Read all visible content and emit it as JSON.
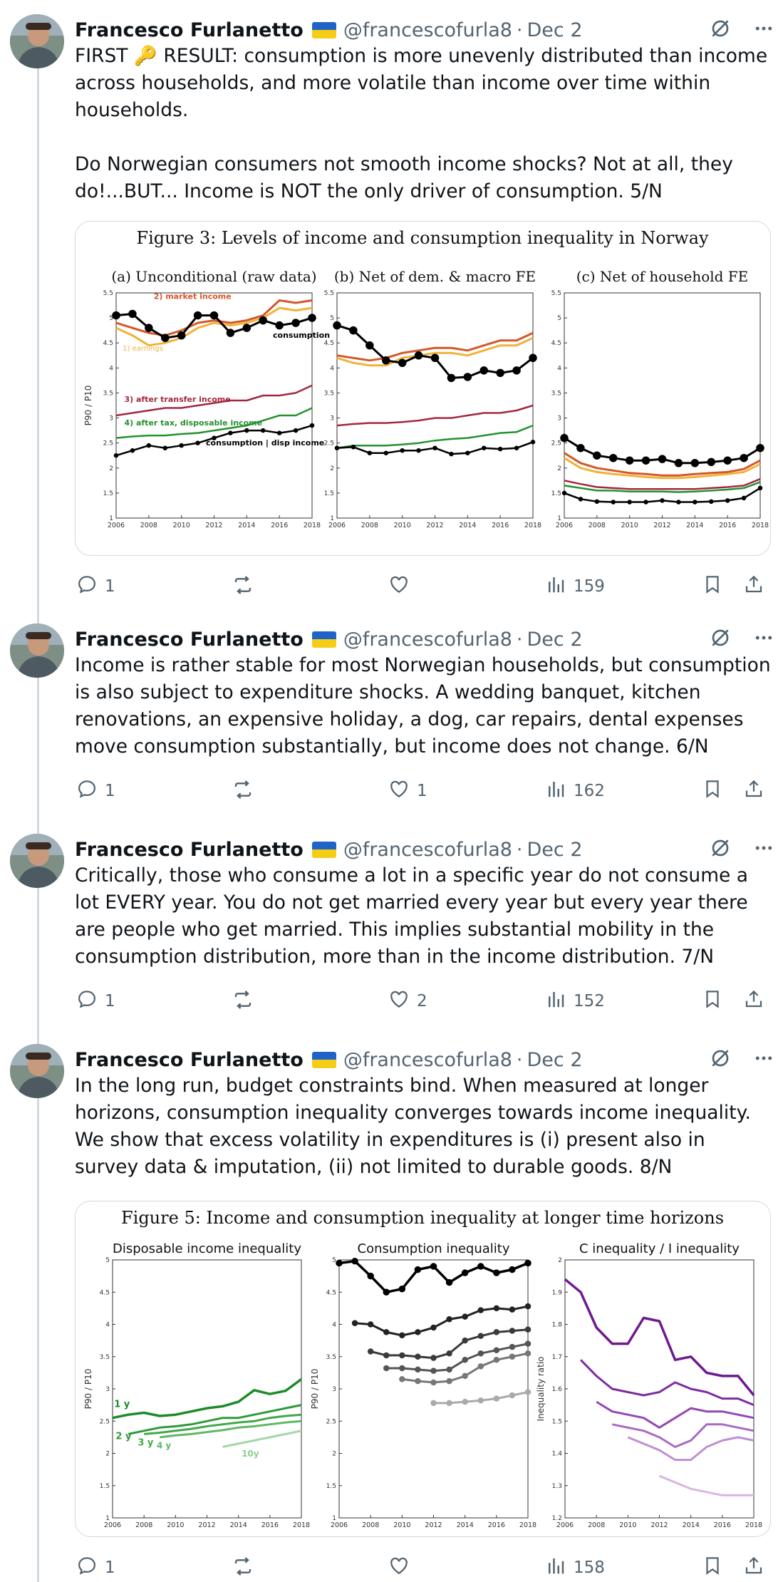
{
  "author": {
    "name": "Francesco Furlanetto",
    "handle": "@francescofurla8"
  },
  "tweets": [
    {
      "date": "Dec 2",
      "text": "FIRST 🔑 RESULT: consumption is more unevenly distributed than income across households, and more volatile than income over time within households.\n\nDo Norwegian consumers not smooth income shocks? Not at all, they do!...BUT... Income is NOT the only driver of consumption. 5/N",
      "replies": "1",
      "retweets": "",
      "likes": "",
      "views": "159"
    },
    {
      "date": "Dec 2",
      "text": "Income is rather stable for most Norwegian households, but consumption is also subject to expenditure shocks. A wedding banquet, kitchen renovations, an expensive holiday, a dog, car repairs, dental expenses move consumption substantially, but income does not change. 6/N",
      "replies": "1",
      "retweets": "",
      "likes": "1",
      "views": "162"
    },
    {
      "date": "Dec 2",
      "text": "Critically, those who consume a lot in a specific year do not consume a lot EVERY year. You do not get married every year but every year there are people who get married. This implies substantial mobility in the consumption distribution, more than in the income distribution. 7/N",
      "replies": "1",
      "retweets": "",
      "likes": "2",
      "views": "152"
    },
    {
      "date": "Dec 2",
      "text": "In the long run, budget constraints bind. When measured at longer horizons, consumption inequality converges towards income inequality.\nWe show that excess volatility in expenditures is (i) present also in survey data & imputation, (ii) not limited to durable goods. 8/N",
      "replies": "1",
      "retweets": "",
      "likes": "",
      "views": "158"
    }
  ],
  "figure3": {
    "title": "Figure 3: Levels of income and consumption inequality in Norway",
    "panels": [
      "(a) Unconditional (raw data)",
      "(b) Net of dem. & macro FE",
      "(c) Net of household FE"
    ],
    "ylabel": "P90 / P10",
    "yticks": [
      "1",
      "1.5",
      "2",
      "2.5",
      "3",
      "3.5",
      "4",
      "4.5",
      "5",
      "5.5"
    ],
    "xticks": [
      "2006",
      "2008",
      "2010",
      "2012",
      "2014",
      "2016",
      "2018"
    ],
    "labels": {
      "market": "2) market income",
      "earnings": "1) earnings",
      "consumption": "consumption",
      "transfer": "3) after transfer income",
      "tax": "4) after tax, disposable income",
      "cdisp": "consumption | disp income"
    }
  },
  "figure5": {
    "title": "Figure 5: Income and consumption inequality at longer time horizons",
    "panels": [
      "Disposable income inequality",
      "Consumption inequality",
      "C inequality / I inequality"
    ],
    "ylabel1": "P90 / P10",
    "ylabel2": "P90 / P10",
    "ylabel3": "Inequality ratio",
    "yticks": [
      "1",
      "1.5",
      "2",
      "2.5",
      "3",
      "3.5",
      "4",
      "4.5",
      "5"
    ],
    "yticks3": [
      "1.2",
      "1.3",
      "1.4",
      "1.5",
      "1.6",
      "1.7",
      "1.8",
      "1.9",
      "2"
    ],
    "xticks": [
      "2006",
      "2008",
      "2010",
      "2012",
      "2014",
      "2016",
      "2018"
    ],
    "labels": {
      "y1": "1 y",
      "y2": "2 y",
      "y3": "3 y",
      "y4": "4 y",
      "y10": "10y"
    }
  },
  "colors": {
    "market": "#d4572a",
    "earnings": "#f0b23a",
    "consumption": "#000000",
    "transfer": "#a3283f",
    "tax": "#25912f",
    "purple": "#7a1f9a"
  },
  "chart_data": [
    {
      "type": "line",
      "title": "Figure 3: Levels of income and consumption inequality in Norway",
      "subtitle": "(a) Unconditional (raw data)",
      "ylabel": "P90 / P10",
      "ylim": [
        1,
        5.5
      ],
      "x": [
        2006,
        2007,
        2008,
        2009,
        2010,
        2011,
        2012,
        2013,
        2014,
        2015,
        2016,
        2017,
        2018
      ],
      "series": [
        {
          "name": "2) market income",
          "values": [
            4.9,
            4.8,
            4.7,
            4.65,
            4.75,
            4.9,
            4.95,
            4.9,
            4.95,
            5.05,
            5.35,
            5.3,
            5.35
          ]
        },
        {
          "name": "1) earnings",
          "values": [
            4.8,
            4.65,
            4.45,
            4.5,
            4.6,
            4.8,
            4.9,
            4.85,
            4.9,
            5.0,
            5.2,
            5.15,
            5.2
          ]
        },
        {
          "name": "consumption",
          "values": [
            5.05,
            5.08,
            4.8,
            4.6,
            4.65,
            5.05,
            5.05,
            4.7,
            4.8,
            4.95,
            4.85,
            4.9,
            5.0
          ]
        },
        {
          "name": "3) after transfer income",
          "values": [
            3.05,
            3.1,
            3.15,
            3.2,
            3.2,
            3.25,
            3.3,
            3.35,
            3.35,
            3.45,
            3.45,
            3.5,
            3.65
          ]
        },
        {
          "name": "4) after tax, disposable income",
          "values": [
            2.6,
            2.63,
            2.65,
            2.65,
            2.68,
            2.7,
            2.75,
            2.8,
            2.85,
            2.95,
            3.05,
            3.05,
            3.2
          ]
        },
        {
          "name": "consumption | disp income",
          "values": [
            2.25,
            2.35,
            2.45,
            2.4,
            2.45,
            2.5,
            2.6,
            2.7,
            2.75,
            2.75,
            2.7,
            2.75,
            2.85
          ]
        }
      ]
    },
    {
      "type": "line",
      "subtitle": "(b) Net of dem. & macro FE",
      "ylim": [
        1,
        5.5
      ],
      "x": [
        2006,
        2007,
        2008,
        2009,
        2010,
        2011,
        2012,
        2013,
        2014,
        2015,
        2016,
        2017,
        2018
      ],
      "series": [
        {
          "values": [
            4.25,
            4.2,
            4.15,
            4.2,
            4.3,
            4.35,
            4.4,
            4.4,
            4.35,
            4.45,
            4.55,
            4.55,
            4.7
          ]
        },
        {
          "values": [
            4.2,
            4.1,
            4.05,
            4.05,
            4.2,
            4.25,
            4.3,
            4.3,
            4.25,
            4.35,
            4.45,
            4.45,
            4.6
          ]
        },
        {
          "values": [
            4.85,
            4.75,
            4.45,
            4.15,
            4.1,
            4.25,
            4.2,
            3.8,
            3.82,
            3.95,
            3.9,
            3.95,
            4.2
          ]
        },
        {
          "values": [
            2.85,
            2.88,
            2.9,
            2.9,
            2.92,
            2.95,
            3.0,
            3.0,
            3.05,
            3.1,
            3.1,
            3.15,
            3.25
          ]
        },
        {
          "values": [
            2.4,
            2.45,
            2.45,
            2.45,
            2.47,
            2.5,
            2.55,
            2.58,
            2.6,
            2.65,
            2.7,
            2.72,
            2.85
          ]
        },
        {
          "values": [
            2.4,
            2.42,
            2.3,
            2.3,
            2.35,
            2.35,
            2.4,
            2.28,
            2.3,
            2.4,
            2.38,
            2.4,
            2.52
          ]
        }
      ]
    },
    {
      "type": "line",
      "subtitle": "(c) Net of household FE",
      "ylim": [
        1,
        5.5
      ],
      "x": [
        2006,
        2007,
        2008,
        2009,
        2010,
        2011,
        2012,
        2013,
        2014,
        2015,
        2016,
        2017,
        2018
      ],
      "series": [
        {
          "values": [
            2.3,
            2.1,
            2.0,
            1.95,
            1.9,
            1.88,
            1.85,
            1.85,
            1.88,
            1.9,
            1.92,
            1.98,
            2.15
          ]
        },
        {
          "values": [
            2.2,
            2.0,
            1.92,
            1.88,
            1.85,
            1.82,
            1.8,
            1.8,
            1.82,
            1.85,
            1.88,
            1.92,
            2.08
          ]
        },
        {
          "values": [
            2.6,
            2.4,
            2.25,
            2.2,
            2.15,
            2.15,
            2.18,
            2.1,
            2.1,
            2.12,
            2.15,
            2.2,
            2.4
          ]
        },
        {
          "values": [
            1.75,
            1.68,
            1.62,
            1.6,
            1.58,
            1.58,
            1.58,
            1.58,
            1.58,
            1.6,
            1.62,
            1.65,
            1.78
          ]
        },
        {
          "values": [
            1.65,
            1.6,
            1.55,
            1.55,
            1.53,
            1.53,
            1.53,
            1.52,
            1.53,
            1.55,
            1.57,
            1.6,
            1.72
          ]
        },
        {
          "values": [
            1.5,
            1.38,
            1.33,
            1.32,
            1.32,
            1.32,
            1.35,
            1.32,
            1.32,
            1.33,
            1.35,
            1.4,
            1.6
          ]
        }
      ]
    },
    {
      "type": "line",
      "title": "Figure 5: Income and consumption inequality at longer time horizons",
      "subtitle": "Disposable income inequality",
      "ylabel": "P90 / P10",
      "ylim": [
        1,
        5
      ],
      "x": [
        2006,
        2007,
        2008,
        2009,
        2010,
        2011,
        2012,
        2013,
        2014,
        2015,
        2016,
        2017,
        2018
      ],
      "series": [
        {
          "name": "1 y",
          "values": [
            2.55,
            2.6,
            2.63,
            2.58,
            2.6,
            2.65,
            2.7,
            2.73,
            2.8,
            2.98,
            2.92,
            2.97,
            3.15
          ]
        },
        {
          "name": "2 y",
          "values": [
            null,
            2.3,
            2.35,
            2.4,
            2.42,
            2.45,
            2.5,
            2.55,
            2.55,
            2.6,
            2.65,
            2.7,
            2.75
          ]
        },
        {
          "name": "3 y",
          "values": [
            null,
            null,
            2.3,
            2.32,
            2.35,
            2.38,
            2.42,
            2.45,
            2.48,
            2.5,
            2.55,
            2.58,
            2.6
          ]
        },
        {
          "name": "4 y",
          "values": [
            null,
            null,
            null,
            2.25,
            2.28,
            2.3,
            2.33,
            2.36,
            2.4,
            2.42,
            2.45,
            2.48,
            2.5
          ]
        },
        {
          "name": "10y",
          "values": [
            null,
            null,
            null,
            null,
            null,
            null,
            null,
            2.1,
            2.15,
            2.2,
            2.25,
            2.3,
            2.35
          ]
        }
      ]
    },
    {
      "type": "line",
      "subtitle": "Consumption inequality",
      "ylabel": "P90 / P10",
      "ylim": [
        1,
        5
      ],
      "x": [
        2006,
        2007,
        2008,
        2009,
        2010,
        2011,
        2012,
        2013,
        2014,
        2015,
        2016,
        2017,
        2018
      ],
      "series": [
        {
          "values": [
            4.95,
            4.98,
            4.75,
            4.5,
            4.55,
            4.85,
            4.9,
            4.65,
            4.8,
            4.9,
            4.8,
            4.85,
            4.95
          ]
        },
        {
          "values": [
            null,
            4.02,
            4.0,
            3.88,
            3.83,
            3.88,
            3.95,
            4.08,
            4.12,
            4.22,
            4.25,
            4.23,
            4.28
          ]
        },
        {
          "values": [
            null,
            null,
            3.58,
            3.52,
            3.52,
            3.5,
            3.48,
            3.55,
            3.75,
            3.82,
            3.88,
            3.9,
            3.92
          ]
        },
        {
          "values": [
            null,
            null,
            null,
            3.32,
            3.32,
            3.3,
            3.28,
            3.3,
            3.45,
            3.55,
            3.6,
            3.65,
            3.7
          ]
        },
        {
          "values": [
            null,
            null,
            null,
            null,
            3.15,
            3.12,
            3.1,
            3.12,
            3.2,
            3.35,
            3.45,
            3.5,
            3.55
          ]
        },
        {
          "values": [
            null,
            null,
            null,
            null,
            null,
            null,
            2.78,
            2.78,
            2.8,
            2.82,
            2.85,
            2.9,
            2.95
          ]
        }
      ]
    },
    {
      "type": "line",
      "subtitle": "C inequality / I inequality",
      "ylabel": "Inequality ratio",
      "ylim": [
        1.2,
        2
      ],
      "x": [
        2006,
        2007,
        2008,
        2009,
        2010,
        2011,
        2012,
        2013,
        2014,
        2015,
        2016,
        2017,
        2018
      ],
      "series": [
        {
          "values": [
            1.94,
            1.9,
            1.79,
            1.74,
            1.74,
            1.82,
            1.81,
            1.69,
            1.7,
            1.65,
            1.64,
            1.64,
            1.58
          ]
        },
        {
          "values": [
            null,
            1.69,
            1.64,
            1.6,
            1.59,
            1.58,
            1.59,
            1.62,
            1.6,
            1.59,
            1.57,
            1.57,
            1.55
          ]
        },
        {
          "values": [
            null,
            null,
            1.56,
            1.53,
            1.52,
            1.51,
            1.48,
            1.51,
            1.54,
            1.53,
            1.53,
            1.52,
            1.51
          ]
        },
        {
          "values": [
            null,
            null,
            null,
            1.49,
            1.48,
            1.47,
            1.45,
            1.42,
            1.44,
            1.49,
            1.49,
            1.48,
            1.47
          ]
        },
        {
          "values": [
            null,
            null,
            null,
            null,
            1.45,
            1.43,
            1.41,
            1.38,
            1.38,
            1.42,
            1.44,
            1.45,
            1.44
          ]
        },
        {
          "values": [
            null,
            null,
            null,
            null,
            null,
            null,
            1.33,
            1.31,
            1.29,
            1.28,
            1.27,
            1.27,
            1.27
          ]
        }
      ]
    }
  ]
}
